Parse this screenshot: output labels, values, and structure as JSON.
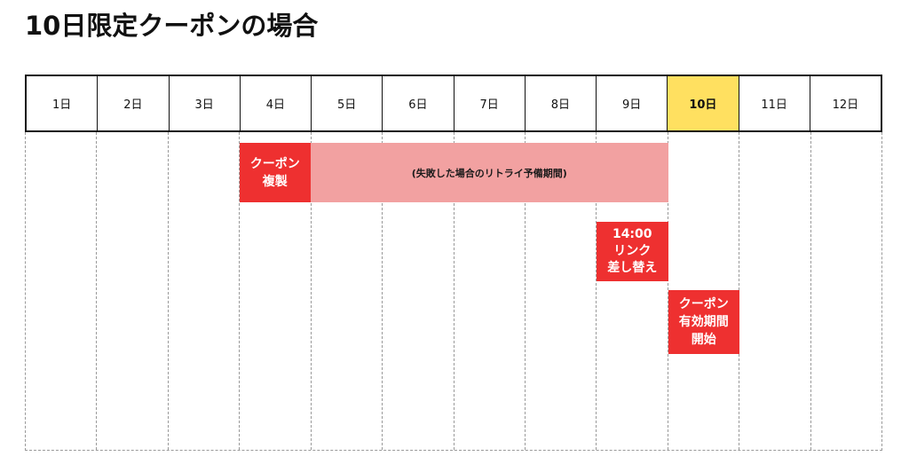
{
  "title": "10日限定クーポンの場合",
  "days": [
    {
      "label": "1日"
    },
    {
      "label": "2日"
    },
    {
      "label": "3日"
    },
    {
      "label": "4日"
    },
    {
      "label": "5日"
    },
    {
      "label": "6日"
    },
    {
      "label": "7日"
    },
    {
      "label": "8日"
    },
    {
      "label": "9日"
    },
    {
      "label": "10日",
      "highlighted": true
    },
    {
      "label": "11日"
    },
    {
      "label": "12日"
    }
  ],
  "events": {
    "coupon_copy": {
      "lines": [
        "クーポン",
        "複製"
      ],
      "start_day": "4日",
      "end_day": "4日"
    },
    "retry_period": {
      "text": "(失敗した場合のリトライ予備期間)",
      "start_day": "5日",
      "end_day": "9日"
    },
    "link_swap": {
      "lines": [
        "14:00",
        "リンク",
        "差し替え"
      ],
      "start_day": "9日",
      "end_day": "9日"
    },
    "coupon_start": {
      "lines": [
        "クーポン",
        "有効期間",
        "開始"
      ],
      "start_day": "10日",
      "end_day": "10日"
    }
  },
  "colors": {
    "event_red": "#ee3030",
    "retry_pink": "#f2a1a1",
    "today_yellow": "#ffe060",
    "grid_border": "#111111",
    "dashed_line": "#9a9a9a"
  }
}
